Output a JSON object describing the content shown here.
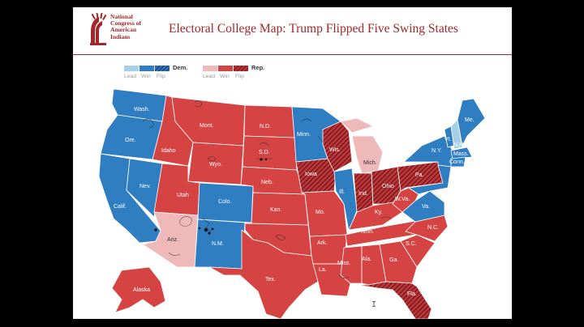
{
  "header": {
    "logo_lines": [
      "National",
      "Congress of",
      "American",
      "Indians"
    ],
    "title": "Electoral College Map: Trump  Flipped Five Swing States"
  },
  "legend": {
    "dem_label": "Dem.",
    "rep_label": "Rep.",
    "items": [
      "Lead",
      "Win",
      "Flip",
      "Lead",
      "Win",
      "Flip"
    ]
  },
  "colors": {
    "brand_red": "#a3262a",
    "dem_win": "#2f7ec2",
    "dem_lead": "#a8cfe8",
    "dem_flip": "#1e4f8a",
    "rep_win": "#d64343",
    "rep_lead": "#f0b9b9",
    "rep_flip": "#8e1f24"
  },
  "states": {
    "wash": "Wash.",
    "ore": "Ore.",
    "calif": "Calif.",
    "nev": "Nev.",
    "idaho": "Idaho",
    "mont": "Mont.",
    "wyo": "Wyo.",
    "utah": "Utah",
    "colo": "Colo.",
    "ariz": "Ariz.",
    "nm": "N.M.",
    "nd": "N.D.",
    "sd": "S.D.",
    "neb": "Neb.",
    "kan": "Kan.",
    "tex": "Tex.",
    "minn": "Minn.",
    "iowa": "Iowa",
    "mo": "Mo.",
    "ark": "Ark.",
    "la": "La.",
    "wis": "Wis.",
    "ill": "Ill.",
    "mich": "Mich.",
    "ind": "Ind.",
    "ohio": "Ohio",
    "ky": "Ky.",
    "tenn": "Tenn.",
    "miss": "Miss.",
    "ala": "Ala.",
    "ga": "Ga.",
    "fla": "Fla.",
    "sc": "S.C.",
    "nc": "N.C.",
    "va": "Va.",
    "wva": "W.Va.",
    "pa": "Pa.",
    "ny": "N.Y.",
    "vt": "Vt.",
    "nh": "N.H.",
    "mass": "Mass.",
    "conn": "Conn.",
    "me": "Me.",
    "alaska": "Alaska"
  }
}
